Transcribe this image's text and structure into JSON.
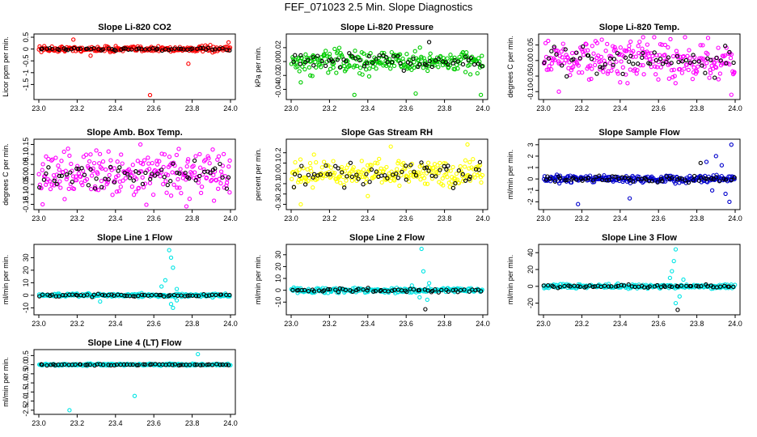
{
  "page": {
    "title": "FEF_071023  2.5 Min. Slope Diagnostics"
  },
  "chart_data": [
    {
      "type": "scatter",
      "title": "Slope Li-820 CO2",
      "xlabel": "",
      "ylabel": "Licor ppm per min.",
      "xlim": [
        23.0,
        24.0
      ],
      "ylim": [
        -2.0,
        0.5
      ],
      "xticks": [
        23.0,
        23.2,
        23.4,
        23.6,
        23.8,
        24.0
      ],
      "xtick_labels": [
        "23.0",
        "23.2",
        "23.4",
        "23.6",
        "23.8",
        "24.0"
      ],
      "yticks": [
        -1.5,
        -1.0,
        -0.5,
        0.0,
        0.5
      ],
      "ytick_labels": [
        "-1.5",
        "-1",
        "-0.5",
        "0",
        "0.5"
      ],
      "series": [
        {
          "name": "colored",
          "color": "#ff0000",
          "center": 0.0,
          "spread": 0.06,
          "outliers": [
            [
              23.18,
              0.4
            ],
            [
              23.58,
              -1.95
            ],
            [
              23.78,
              -0.62
            ],
            [
              23.99,
              0.28
            ],
            [
              23.27,
              -0.28
            ]
          ]
        },
        {
          "name": "black",
          "color": "#000000",
          "center": 0.0,
          "spread": 0.03,
          "outliers": []
        }
      ]
    },
    {
      "type": "scatter",
      "title": "Slope Li-820 Pressure",
      "xlabel": "",
      "ylabel": "kPa per min.",
      "xlim": [
        23.0,
        24.0
      ],
      "ylim": [
        -0.05,
        0.035
      ],
      "xticks": [
        23.0,
        23.2,
        23.4,
        23.6,
        23.8,
        24.0
      ],
      "xtick_labels": [
        "23.0",
        "23.2",
        "23.4",
        "23.6",
        "23.8",
        "24.0"
      ],
      "yticks": [
        -0.04,
        -0.02,
        0.0,
        0.02
      ],
      "ytick_labels": [
        "-0.04",
        "-0.02",
        "0.00",
        "0.02"
      ],
      "series": [
        {
          "name": "colored",
          "color": "#00cc00",
          "center": 0.0,
          "spread": 0.008,
          "outliers": [
            [
              23.33,
              -0.048
            ],
            [
              23.65,
              -0.046
            ],
            [
              23.99,
              -0.048
            ],
            [
              23.05,
              -0.03
            ],
            [
              23.1,
              -0.02
            ]
          ]
        },
        {
          "name": "black",
          "color": "#000000",
          "center": 0.0,
          "spread": 0.005,
          "outliers": [
            [
              23.72,
              0.028
            ]
          ]
        }
      ]
    },
    {
      "type": "scatter",
      "title": "Slope Li-820 Temp.",
      "xlabel": "",
      "ylabel": "degrees C per min.",
      "xlim": [
        23.0,
        24.0
      ],
      "ylim": [
        -0.115,
        0.075
      ],
      "xticks": [
        23.0,
        23.2,
        23.4,
        23.6,
        23.8,
        24.0
      ],
      "xtick_labels": [
        "23.0",
        "23.2",
        "23.4",
        "23.6",
        "23.8",
        "24.0"
      ],
      "yticks": [
        -0.1,
        -0.05,
        0.0,
        0.05
      ],
      "ytick_labels": [
        "-0.10",
        "-0.05",
        "0.00",
        "0.05"
      ],
      "series": [
        {
          "name": "colored",
          "color": "#ff00ff",
          "center": 0.0,
          "spread": 0.03,
          "outliers": [
            [
              23.08,
              -0.1
            ],
            [
              23.52,
              0.075
            ],
            [
              23.98,
              -0.11
            ],
            [
              23.4,
              -0.07
            ]
          ]
        },
        {
          "name": "black",
          "color": "#000000",
          "center": 0.0,
          "spread": 0.02,
          "outliers": []
        }
      ]
    },
    {
      "type": "scatter",
      "title": "Slope Amb. Box Temp.",
      "xlabel": "",
      "ylabel": "degrees C per min.",
      "xlim": [
        23.0,
        24.0
      ],
      "ylim": [
        -0.16,
        0.16
      ],
      "xticks": [
        23.0,
        23.2,
        23.4,
        23.6,
        23.8,
        24.0
      ],
      "xtick_labels": [
        "23.0",
        "23.2",
        "23.4",
        "23.6",
        "23.8",
        "24.0"
      ],
      "yticks": [
        -0.15,
        -0.1,
        -0.05,
        0.0,
        0.05,
        0.1,
        0.15
      ],
      "ytick_labels": [
        "-0.15",
        "-0.10",
        "-0.05",
        "0.00",
        "0.05",
        "0.10",
        "0.15"
      ],
      "series": [
        {
          "name": "colored",
          "color": "#ff00ff",
          "center": 0.0,
          "spread": 0.05,
          "outliers": [
            [
              23.02,
              -0.15
            ],
            [
              23.53,
              0.15
            ],
            [
              23.77,
              -0.16
            ],
            [
              23.3,
              0.12
            ]
          ]
        },
        {
          "name": "black",
          "color": "#000000",
          "center": 0.0,
          "spread": 0.035,
          "outliers": []
        }
      ]
    },
    {
      "type": "scatter",
      "title": "Slope Gas Stream RH",
      "xlabel": "",
      "ylabel": "percent per min.",
      "xlim": [
        23.0,
        24.0
      ],
      "ylim": [
        -0.32,
        0.3
      ],
      "xticks": [
        23.0,
        23.2,
        23.4,
        23.6,
        23.8,
        24.0
      ],
      "xtick_labels": [
        "23.0",
        "23.2",
        "23.4",
        "23.6",
        "23.8",
        "24.0"
      ],
      "yticks": [
        -0.3,
        -0.2,
        -0.1,
        0.0,
        0.1,
        0.2
      ],
      "ytick_labels": [
        "-0.3",
        "-0.2",
        "-0.1",
        "0.0",
        "0.1",
        "0.2"
      ],
      "series": [
        {
          "name": "colored",
          "color": "#ffff00",
          "center": 0.0,
          "spread": 0.06,
          "outliers": [
            [
              23.05,
              -0.3
            ],
            [
              23.52,
              0.26
            ],
            [
              23.92,
              0.28
            ],
            [
              23.4,
              -0.22
            ]
          ]
        },
        {
          "name": "black",
          "color": "#000000",
          "center": 0.0,
          "spread": 0.06,
          "outliers": []
        }
      ]
    },
    {
      "type": "scatter",
      "title": "Slope Sample Flow",
      "xlabel": "",
      "ylabel": "ml/min per min.",
      "xlim": [
        23.0,
        24.0
      ],
      "ylim": [
        -2.4,
        3.2
      ],
      "xticks": [
        23.0,
        23.2,
        23.4,
        23.6,
        23.8,
        24.0
      ],
      "xtick_labels": [
        "23.0",
        "23.2",
        "23.4",
        "23.6",
        "23.8",
        "24.0"
      ],
      "yticks": [
        -2,
        -1,
        0,
        1,
        2,
        3
      ],
      "ytick_labels": [
        "-2",
        "-1",
        "0",
        "1",
        "2",
        "3"
      ],
      "series": [
        {
          "name": "colored",
          "color": "#0000cc",
          "center": 0.0,
          "spread": 0.15,
          "outliers": [
            [
              23.18,
              -2.2
            ],
            [
              23.45,
              -1.7
            ],
            [
              23.98,
              3.0
            ],
            [
              23.97,
              -2.0
            ],
            [
              23.9,
              2.0
            ],
            [
              23.85,
              1.5
            ],
            [
              23.95,
              -1.3
            ],
            [
              23.88,
              -1.0
            ],
            [
              23.93,
              1.2
            ]
          ]
        },
        {
          "name": "black",
          "color": "#000000",
          "center": 0.0,
          "spread": 0.15,
          "outliers": [
            [
              23.82,
              1.4
            ]
          ]
        }
      ]
    },
    {
      "type": "scatter",
      "title": "Slope Line 1 Flow",
      "xlabel": "",
      "ylabel": "ml/min per min.",
      "xlim": [
        23.0,
        24.0
      ],
      "ylim": [
        -13,
        38
      ],
      "xticks": [
        23.0,
        23.2,
        23.4,
        23.6,
        23.8,
        24.0
      ],
      "xtick_labels": [
        "23.0",
        "23.2",
        "23.4",
        "23.6",
        "23.8",
        "24.0"
      ],
      "yticks": [
        -10,
        0,
        10,
        20,
        30
      ],
      "ytick_labels": [
        "-10",
        "0",
        "10",
        "20",
        "30"
      ],
      "series": [
        {
          "name": "colored",
          "color": "#00e5e5",
          "center": 0.0,
          "spread": 0.6,
          "outliers": [
            [
              23.68,
              36
            ],
            [
              23.69,
              30
            ],
            [
              23.7,
              22
            ],
            [
              23.66,
              12
            ],
            [
              23.7,
              -10
            ],
            [
              23.69,
              -7
            ],
            [
              23.72,
              -4
            ],
            [
              23.64,
              7
            ],
            [
              23.32,
              -5
            ],
            [
              23.72,
              5
            ]
          ]
        },
        {
          "name": "black",
          "color": "#000000",
          "center": 0.0,
          "spread": 0.5,
          "outliers": []
        }
      ]
    },
    {
      "type": "scatter",
      "title": "Slope Line 2 Flow",
      "xlabel": "",
      "ylabel": "ml/min per min.",
      "xlim": [
        23.0,
        24.0
      ],
      "ylim": [
        -18,
        36
      ],
      "xticks": [
        23.0,
        23.2,
        23.4,
        23.6,
        23.8,
        24.0
      ],
      "xtick_labels": [
        "23.0",
        "23.2",
        "23.4",
        "23.6",
        "23.8",
        "24.0"
      ],
      "yticks": [
        -10,
        0,
        10,
        20,
        30
      ],
      "ytick_labels": [
        "-10",
        "0",
        "10",
        "20",
        "30"
      ],
      "series": [
        {
          "name": "colored",
          "color": "#00e5e5",
          "center": 0.0,
          "spread": 1.0,
          "outliers": [
            [
              23.68,
              35
            ],
            [
              23.69,
              16
            ],
            [
              23.67,
              -6
            ],
            [
              23.71,
              -8
            ],
            [
              23.63,
              4
            ],
            [
              23.72,
              6
            ]
          ]
        },
        {
          "name": "black",
          "color": "#000000",
          "center": 0.0,
          "spread": 0.8,
          "outliers": [
            [
              23.7,
              -16
            ]
          ]
        }
      ]
    },
    {
      "type": "scatter",
      "title": "Slope Line 3 Flow",
      "xlabel": "",
      "ylabel": "ml/min per min.",
      "xlim": [
        23.0,
        24.0
      ],
      "ylim": [
        -30,
        46
      ],
      "xticks": [
        23.0,
        23.2,
        23.4,
        23.6,
        23.8,
        24.0
      ],
      "xtick_labels": [
        "23.0",
        "23.2",
        "23.4",
        "23.6",
        "23.8",
        "24.0"
      ],
      "yticks": [
        -20,
        0,
        20,
        40
      ],
      "ytick_labels": [
        "-20",
        "0",
        "20",
        "40"
      ],
      "series": [
        {
          "name": "colored",
          "color": "#00e5e5",
          "center": 0.0,
          "spread": 1.2,
          "outliers": [
            [
              23.69,
              44
            ],
            [
              23.68,
              30
            ],
            [
              23.67,
              18
            ],
            [
              23.69,
              -20
            ],
            [
              23.71,
              -12
            ],
            [
              23.66,
              10
            ],
            [
              23.73,
              8
            ]
          ]
        },
        {
          "name": "black",
          "color": "#000000",
          "center": 0.0,
          "spread": 1.0,
          "outliers": [
            [
              23.7,
              -28
            ]
          ]
        }
      ]
    },
    {
      "type": "scatter",
      "title": "Slope Line 4 (LT) Flow",
      "xlabel": "",
      "ylabel": "ml/min per min.",
      "xlim": [
        23.0,
        24.0
      ],
      "ylim": [
        -2.55,
        0.65
      ],
      "xticks": [
        23.0,
        23.2,
        23.4,
        23.6,
        23.8,
        24.0
      ],
      "xtick_labels": [
        "23.0",
        "23.2",
        "23.4",
        "23.6",
        "23.8",
        "24.0"
      ],
      "yticks": [
        -2.5,
        -2.0,
        -1.5,
        -1.0,
        -0.5,
        0.0,
        0.5
      ],
      "ytick_labels": [
        "-2.5",
        "-2.0",
        "-1.5",
        "-1.0",
        "-0.5",
        "0.0",
        "0.5"
      ],
      "series": [
        {
          "name": "colored",
          "color": "#00e5e5",
          "center": 0.0,
          "spread": 0.025,
          "outliers": [
            [
              23.16,
              -2.5
            ],
            [
              23.5,
              -1.72
            ],
            [
              23.83,
              0.58
            ]
          ]
        },
        {
          "name": "black",
          "color": "#000000",
          "center": 0.0,
          "spread": 0.02,
          "outliers": []
        }
      ]
    }
  ]
}
